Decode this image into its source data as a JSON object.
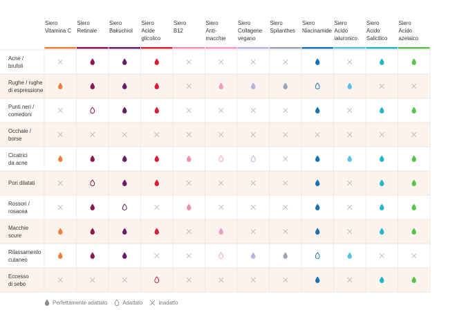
{
  "chart_data": {
    "type": "table",
    "columns": [
      {
        "label": [
          "Siero",
          "Vitamina C"
        ],
        "color": "#f07f3c"
      },
      {
        "label": [
          "Siero",
          "Retinale"
        ],
        "color": "#8c1553"
      },
      {
        "label": [
          "Siero",
          "Bakuchiol"
        ],
        "color": "#6a1a67"
      },
      {
        "label": [
          "Siero",
          "Acide",
          "glicolico"
        ],
        "color": "#d81f36"
      },
      {
        "label": [
          "Siero",
          "B12"
        ],
        "color": "#ee90b3"
      },
      {
        "label": [
          "Siero",
          "Anti-",
          "macchie"
        ],
        "color": "#f09bc1"
      },
      {
        "label": [
          "Siero",
          "Collagene",
          "vegano"
        ],
        "color": "#b3b5de"
      },
      {
        "label": [
          "Siero",
          "Spilanthes"
        ],
        "color": "#9aa5b8"
      },
      {
        "label": [
          "Siero",
          "Niacinamide"
        ],
        "color": "#1672b5"
      },
      {
        "label": [
          "Siero",
          "Acido",
          "ialuronico"
        ],
        "color": "#5ac3e3"
      },
      {
        "label": [
          "Siero",
          "Acido",
          "Salicilico"
        ],
        "color": "#22b6c9"
      },
      {
        "label": [
          "Siero",
          "Acido",
          "azelaico"
        ],
        "color": "#5cc24e"
      }
    ],
    "rows": [
      {
        "label": [
          "Acne /",
          "brufoli"
        ],
        "values": [
          0,
          2,
          2,
          2,
          0,
          0,
          0,
          0,
          2,
          0,
          2,
          2
        ]
      },
      {
        "label": [
          "Rughe / rughe",
          "di espressione"
        ],
        "values": [
          2,
          2,
          2,
          2,
          0,
          2,
          2,
          2,
          1,
          2,
          0,
          0
        ]
      },
      {
        "label": [
          "Punti neri /",
          "comedoni"
        ],
        "values": [
          0,
          1,
          2,
          2,
          0,
          0,
          0,
          0,
          2,
          0,
          2,
          2
        ]
      },
      {
        "label": [
          "Occhaie /",
          "borse"
        ],
        "values": [
          0,
          0,
          0,
          0,
          0,
          0,
          0,
          0,
          0,
          0,
          0,
          0
        ]
      },
      {
        "label": [
          "Cicatrici",
          "da acne"
        ],
        "values": [
          2,
          2,
          2,
          2,
          2,
          1,
          1,
          0,
          2,
          2,
          2,
          2
        ]
      },
      {
        "label": [
          "Pori dilatati"
        ],
        "values": [
          0,
          1,
          2,
          2,
          0,
          0,
          0,
          0,
          2,
          0,
          2,
          2
        ]
      },
      {
        "label": [
          "Rossori /",
          "rosacea"
        ],
        "values": [
          0,
          2,
          1,
          0,
          2,
          0,
          0,
          0,
          2,
          0,
          2,
          2
        ]
      },
      {
        "label": [
          "Macchie",
          "scure"
        ],
        "values": [
          2,
          2,
          2,
          2,
          0,
          2,
          0,
          0,
          2,
          0,
          2,
          2
        ]
      },
      {
        "label": [
          "Rilassamento",
          "cutaneo"
        ],
        "values": [
          2,
          2,
          2,
          0,
          0,
          1,
          2,
          2,
          1,
          2,
          0,
          0
        ]
      },
      {
        "label": [
          "Eccesso",
          "di sebo"
        ],
        "values": [
          0,
          0,
          0,
          1,
          0,
          0,
          0,
          0,
          2,
          0,
          2,
          2
        ]
      }
    ],
    "value_legend": {
      "2": "Perfettamente adattato",
      "1": "Adattato",
      "0": "Inadatto"
    },
    "cross_color": "#b8b8b8",
    "stripe_color": "#fbf3ec",
    "legend_color": "#8a8a8a"
  }
}
